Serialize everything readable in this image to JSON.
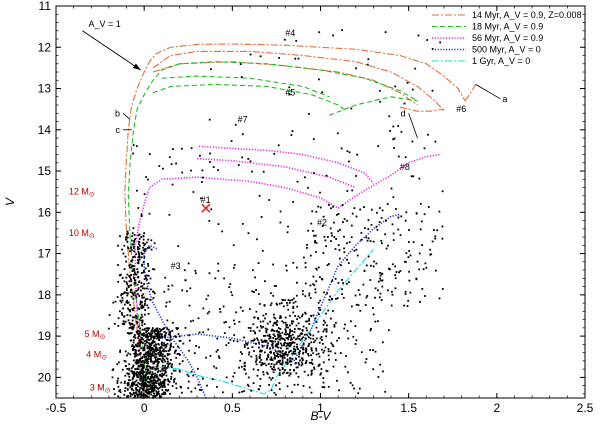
{
  "chart_data": {
    "type": "scatter",
    "xlabel": "B-V",
    "ylabel": "V",
    "xlim": [
      -0.5,
      2.5
    ],
    "ylim": [
      20.5,
      11
    ],
    "y_inverted": true,
    "x_ticks": [
      "-0.5",
      "0",
      "0.5",
      "1",
      "1.5",
      "2",
      "2.5"
    ],
    "x_tick_values": [
      -0.5,
      0,
      0.5,
      1,
      1.5,
      2,
      2.5
    ],
    "y_ticks": [
      "11",
      "12",
      "13",
      "14",
      "15",
      "16",
      "17",
      "18",
      "19",
      "20"
    ],
    "y_tick_values": [
      11,
      12,
      13,
      14,
      15,
      16,
      17,
      18,
      19,
      20
    ],
    "grid": false,
    "legend_position": "top-right",
    "colors": {
      "iso14": "#e07040",
      "iso18": "#22bb22",
      "iso56": "#ee22ee",
      "iso500": "#2233cc",
      "iso1gyr": "#22dddd",
      "stars": "#000000",
      "cross": "#dd2222",
      "mass_labels": "#c00000"
    },
    "series": [
      {
        "name": "14 Myr, A_V = 0.9, Z=0.008",
        "style": "dash-dot",
        "color_key": "iso14",
        "segments": [
          [
            [
              0.02,
              20.5
            ],
            [
              -0.02,
              19.5
            ],
            [
              -0.05,
              18.5
            ],
            [
              -0.08,
              17.5
            ],
            [
              -0.1,
              16.5
            ],
            [
              -0.11,
              15.5
            ],
            [
              -0.1,
              14.7
            ],
            [
              -0.09,
              14.0
            ],
            [
              -0.07,
              13.4
            ],
            [
              -0.04,
              13.0
            ],
            [
              0.0,
              12.6
            ],
            [
              0.03,
              12.35
            ],
            [
              0.07,
              12.15
            ],
            [
              0.15,
              12.0
            ],
            [
              0.3,
              11.93
            ],
            [
              0.5,
              11.92
            ],
            [
              0.8,
              11.95
            ],
            [
              1.2,
              12.05
            ],
            [
              1.45,
              12.2
            ],
            [
              1.6,
              12.4
            ],
            [
              1.7,
              12.7
            ],
            [
              1.78,
              13.0
            ],
            [
              1.82,
              13.3
            ]
          ],
          [
            [
              0.05,
              12.5
            ],
            [
              0.15,
              12.2
            ],
            [
              0.3,
              12.1
            ],
            [
              0.6,
              12.1
            ],
            [
              0.9,
              12.2
            ],
            [
              1.2,
              12.35
            ],
            [
              1.4,
              12.6
            ],
            [
              1.55,
              12.95
            ],
            [
              1.65,
              13.3
            ],
            [
              1.7,
              13.55
            ]
          ],
          [
            [
              0.05,
              12.6
            ],
            [
              0.2,
              12.4
            ],
            [
              0.5,
              12.35
            ],
            [
              0.8,
              12.45
            ],
            [
              1.1,
              12.6
            ],
            [
              1.3,
              12.8
            ],
            [
              1.45,
              13.1
            ],
            [
              1.55,
              13.4
            ]
          ],
          [
            [
              1.82,
              13.3
            ],
            [
              1.86,
              13.05
            ],
            [
              1.88,
              12.9
            ]
          ],
          [
            [
              1.45,
              13.45
            ],
            [
              1.55,
              13.55
            ],
            [
              1.62,
              13.55
            ],
            [
              1.7,
              13.5
            ]
          ]
        ]
      },
      {
        "name": "18 Myr, A_V = 0.9",
        "style": "dashed",
        "color_key": "iso18",
        "segments": [
          [
            [
              0.03,
              20.5
            ],
            [
              0.0,
              19.6
            ],
            [
              -0.03,
              18.6
            ],
            [
              -0.06,
              17.6
            ],
            [
              -0.08,
              16.6
            ],
            [
              -0.09,
              15.6
            ],
            [
              -0.08,
              14.8
            ],
            [
              -0.06,
              14.0
            ],
            [
              -0.04,
              13.5
            ],
            [
              0.0,
              13.15
            ],
            [
              0.05,
              12.8
            ],
            [
              0.1,
              12.55
            ],
            [
              0.2,
              12.4
            ],
            [
              0.4,
              12.35
            ],
            [
              0.7,
              12.4
            ],
            [
              1.0,
              12.55
            ],
            [
              1.25,
              12.75
            ],
            [
              1.45,
              13.05
            ],
            [
              1.55,
              13.3
            ]
          ],
          [
            [
              0.05,
              13.1
            ],
            [
              0.15,
              12.95
            ],
            [
              0.4,
              12.9
            ],
            [
              0.7,
              12.95
            ],
            [
              0.95,
              13.15
            ],
            [
              1.1,
              13.4
            ],
            [
              1.15,
              13.55
            ]
          ],
          [
            [
              0.1,
              12.75
            ],
            [
              0.3,
              12.7
            ],
            [
              0.6,
              12.75
            ],
            [
              0.9,
              12.95
            ],
            [
              1.05,
              13.2
            ]
          ],
          [
            [
              1.05,
              13.65
            ],
            [
              1.2,
              13.4
            ],
            [
              1.4,
              13.2
            ],
            [
              1.55,
              13.3
            ]
          ]
        ]
      },
      {
        "name": "56 Myr, A_V = 0.9",
        "style": "dotted",
        "color_key": "iso56",
        "segments": [
          [
            [
              0.0,
              20.5
            ],
            [
              -0.02,
              19.5
            ],
            [
              -0.04,
              18.5
            ],
            [
              -0.05,
              17.5
            ],
            [
              -0.05,
              16.8
            ],
            [
              -0.03,
              16.3
            ],
            [
              0.0,
              15.8
            ],
            [
              0.03,
              15.4
            ],
            [
              0.1,
              15.2
            ],
            [
              0.3,
              15.15
            ],
            [
              0.6,
              15.25
            ],
            [
              0.8,
              15.4
            ],
            [
              1.0,
              15.65
            ],
            [
              1.1,
              15.9
            ]
          ],
          [
            [
              0.31,
              14.4
            ],
            [
              0.5,
              14.45
            ],
            [
              0.7,
              14.5
            ],
            [
              0.9,
              14.6
            ],
            [
              1.1,
              14.8
            ],
            [
              1.25,
              15.05
            ],
            [
              1.3,
              15.3
            ]
          ],
          [
            [
              0.3,
              14.7
            ],
            [
              0.5,
              14.75
            ],
            [
              0.8,
              14.9
            ],
            [
              1.05,
              15.15
            ],
            [
              1.2,
              15.4
            ]
          ],
          [
            [
              1.1,
              15.9
            ],
            [
              1.2,
              15.6
            ],
            [
              1.3,
              15.35
            ],
            [
              1.4,
              15.1
            ],
            [
              1.5,
              14.8
            ],
            [
              1.6,
              14.65
            ],
            [
              1.68,
              14.6
            ]
          ]
        ]
      },
      {
        "name": "500 Myr, A_V = 0",
        "style": "dotted",
        "color_key": "iso500",
        "segments": [
          [
            [
              0.35,
              20.5
            ],
            [
              0.3,
              20.0
            ],
            [
              0.25,
              19.6
            ],
            [
              0.2,
              19.3
            ],
            [
              0.15,
              19.0
            ],
            [
              0.1,
              18.6
            ],
            [
              0.05,
              18.2
            ],
            [
              0.02,
              17.8
            ],
            [
              0.0,
              17.4
            ],
            [
              0.0,
              17.0
            ],
            [
              0.03,
              16.8
            ],
            [
              0.08,
              16.9
            ]
          ],
          [
            [
              0.1,
              19.05
            ],
            [
              0.3,
              18.95
            ],
            [
              0.5,
              19.05
            ],
            [
              0.7,
              19.25
            ],
            [
              0.8,
              19.45
            ],
            [
              0.85,
              19.6
            ]
          ],
          [
            [
              0.85,
              19.6
            ],
            [
              0.9,
              19.2
            ],
            [
              0.95,
              18.8
            ],
            [
              1.0,
              18.3
            ],
            [
              1.05,
              17.8
            ],
            [
              1.1,
              17.3
            ],
            [
              1.2,
              16.8
            ],
            [
              1.3,
              16.4
            ],
            [
              1.4,
              16.1
            ],
            [
              1.45,
              16.05
            ]
          ]
        ]
      },
      {
        "name": "1 Gyr, A_V = 0",
        "style": "dash-dot",
        "color_key": "iso1gyr",
        "segments": [
          [
            [
              0.0,
              20.1
            ],
            [
              0.0,
              19.85
            ],
            [
              0.1,
              19.75
            ],
            [
              0.2,
              19.8
            ],
            [
              0.3,
              19.95
            ],
            [
              0.45,
              20.1
            ],
            [
              0.6,
              20.3
            ],
            [
              0.68,
              20.4
            ],
            [
              0.72,
              20.3
            ],
            [
              0.75,
              20.0
            ],
            [
              0.8,
              19.7
            ],
            [
              0.85,
              19.4
            ],
            [
              0.9,
              19.1
            ],
            [
              0.95,
              18.8
            ],
            [
              1.0,
              18.5
            ],
            [
              1.05,
              18.2
            ],
            [
              1.1,
              17.9
            ],
            [
              1.2,
              17.4
            ],
            [
              1.3,
              16.9
            ]
          ]
        ]
      }
    ],
    "highlight_marker": {
      "label": "#1",
      "x": 0.35,
      "y": 15.9
    },
    "object_labels": [
      {
        "text": "#4",
        "x": 0.8,
        "y": 11.65
      },
      {
        "text": "#5",
        "x": 0.8,
        "y": 13.1
      },
      {
        "text": "#7",
        "x": 0.53,
        "y": 13.75
      },
      {
        "text": "#6",
        "x": 1.77,
        "y": 13.5
      },
      {
        "text": "#8",
        "x": 1.45,
        "y": 14.9
      },
      {
        "text": "#1",
        "x": 0.32,
        "y": 15.7
      },
      {
        "text": "#2",
        "x": 0.98,
        "y": 16.25
      },
      {
        "text": "#3",
        "x": 0.15,
        "y": 17.3
      }
    ],
    "letter_annotations": [
      {
        "text": "a",
        "x": 2.02,
        "y": 13.25,
        "pointer_to": [
          1.88,
          12.9
        ]
      },
      {
        "text": "b",
        "x": -0.12,
        "y": 13.6,
        "pointer_to": [
          -0.08,
          13.75
        ]
      },
      {
        "text": "c",
        "x": -0.12,
        "y": 14.0,
        "pointer_to": [
          -0.07,
          14.0
        ]
      },
      {
        "text": "d",
        "x": 1.5,
        "y": 13.6,
        "pointer_to": [
          1.55,
          14.2
        ]
      }
    ],
    "av_arrow": {
      "text": "A_V = 1",
      "from": [
        -0.35,
        11.6
      ],
      "to": [
        -0.02,
        12.55
      ]
    },
    "mass_labels": [
      {
        "text": "12 M",
        "x": -0.28,
        "y": 15.5
      },
      {
        "text": "10 M",
        "x": -0.28,
        "y": 16.5
      },
      {
        "text": "5 M",
        "x": -0.22,
        "y": 18.95
      },
      {
        "text": "4 M",
        "x": -0.21,
        "y": 19.45
      },
      {
        "text": "3 M",
        "x": -0.19,
        "y": 20.25
      }
    ],
    "mass_subscript": "⊙"
  }
}
